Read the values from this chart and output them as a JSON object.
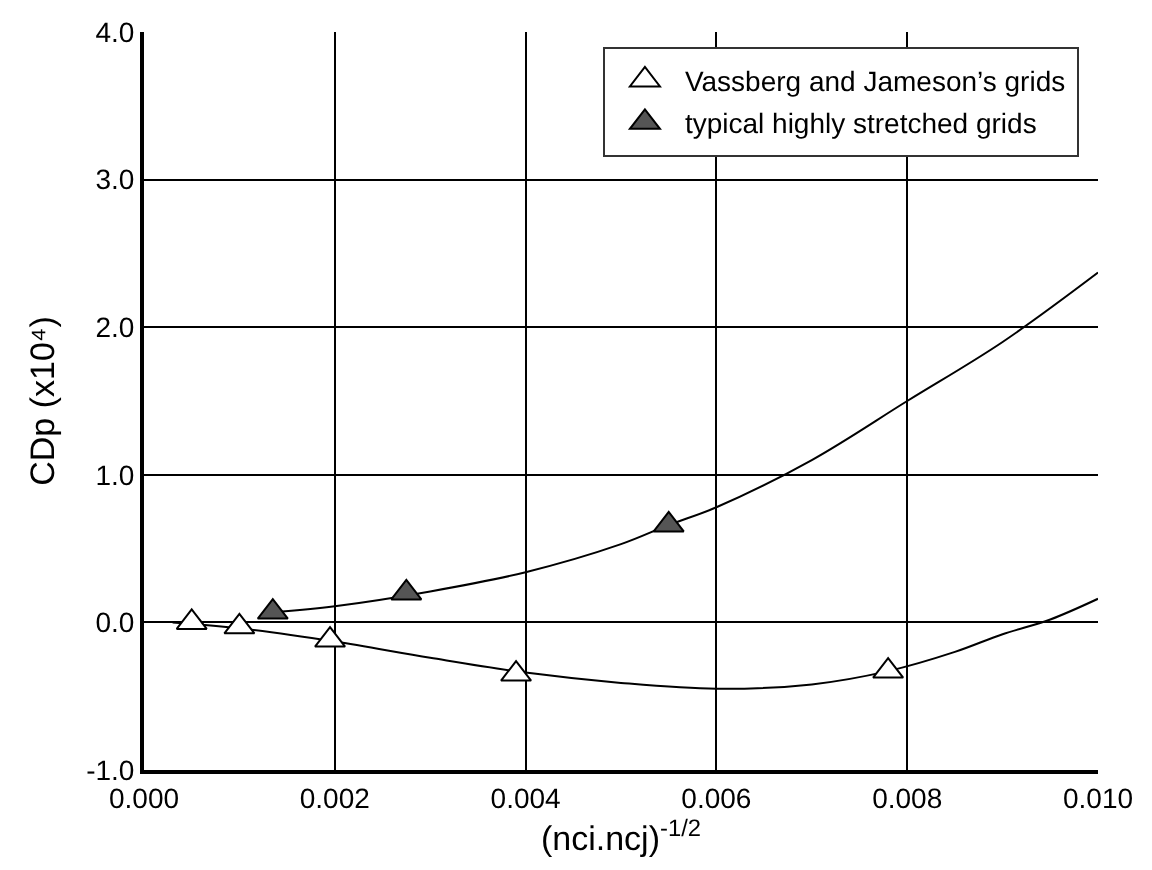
{
  "chart_data": {
    "type": "scatter",
    "xlabel": "(nci.ncj)$^{-1/2}$",
    "ylabel": "CDp (x10⁴)",
    "xlim": [
      0,
      0.01
    ],
    "xticks": [
      {
        "value": 0,
        "label": "0.000"
      },
      {
        "value": 0.002,
        "label": "0.002"
      },
      {
        "value": 0.004,
        "label": "0.004"
      },
      {
        "value": 0.006,
        "label": "0.006"
      },
      {
        "value": 0.008,
        "label": "0.008"
      },
      {
        "value": 0.01,
        "label": "0.010"
      }
    ],
    "ylim": [
      -1,
      4
    ],
    "yticks": [
      {
        "value": -1,
        "label": "-1.0"
      },
      {
        "value": 0,
        "label": "0.0"
      },
      {
        "value": 1,
        "label": "1.0"
      },
      {
        "value": 2,
        "label": "2.0"
      },
      {
        "value": 3,
        "label": "3.0"
      },
      {
        "value": 4,
        "label": "4.0"
      }
    ],
    "grid": true,
    "legend": "top right",
    "marker": "triangle",
    "series": [
      {
        "type": "line",
        "marker": "none",
        "color": "#000000",
        "x": [
          0.0003,
          0.001,
          0.002,
          0.003,
          0.004,
          0.005,
          0.006,
          0.007,
          0.0078,
          0.0085,
          0.009,
          0.0095,
          0.01
        ],
        "values": [
          0,
          -0.04,
          -0.13,
          -0.24,
          -0.34,
          -0.41,
          -0.45,
          -0.42,
          -0.33,
          -0.2,
          -0.08,
          0.02,
          0.16
        ]
      },
      {
        "type": "line",
        "marker": "none",
        "color": "#000000",
        "x": [
          0.00135,
          0.002,
          0.003,
          0.004,
          0.005,
          0.0055,
          0.006,
          0.007,
          0.008,
          0.009,
          0.01
        ],
        "values": [
          0.07,
          0.11,
          0.21,
          0.34,
          0.53,
          0.66,
          0.78,
          1.1,
          1.5,
          1.9,
          2.37
        ]
      },
      {
        "name": "Vassberg and Jameson’s grids",
        "color": "#ffffff",
        "x": [
          0.0005,
          0.001,
          0.00195,
          0.0039,
          0.0078
        ],
        "values": [
          0,
          -0.03,
          -0.12,
          -0.35,
          -0.33
        ]
      },
      {
        "name": "typical highly stretched grids",
        "color": "#555555",
        "x": [
          0.00135,
          0.00275,
          0.0055
        ],
        "values": [
          0.07,
          0.2,
          0.66
        ]
      }
    ]
  }
}
